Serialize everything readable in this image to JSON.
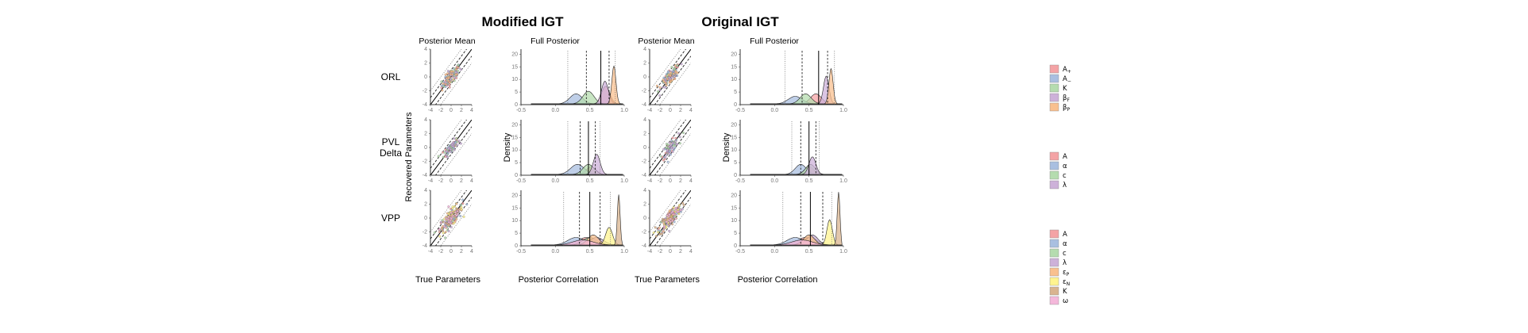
{
  "figure": {
    "panel_titles": [
      "Modified IGT",
      "Original IGT"
    ],
    "column_titles": {
      "mean": "Posterior Mean",
      "full": "Full Posterior"
    },
    "rows": [
      {
        "label": "ORL"
      },
      {
        "label": "PVL\nDelta"
      },
      {
        "label": "VPP"
      }
    ],
    "ylabel_scatter": "Recovered Parameters",
    "ylabel_density": "Density",
    "xlabel_scatter": "True Parameters",
    "xlabel_density": "Posterior Correlation",
    "legends": [
      {
        "row": "ORL",
        "items": [
          {
            "label": "A+",
            "color": "#F4A3A5"
          },
          {
            "label": "A−",
            "color": "#A9BFE0"
          },
          {
            "label": "K",
            "color": "#B5DCAF"
          },
          {
            "label": "βF",
            "color": "#CDB1D9"
          },
          {
            "label": "βP",
            "color": "#F9C08F"
          }
        ]
      },
      {
        "row": "PVL Delta",
        "items": [
          {
            "label": "A",
            "color": "#F4A3A5"
          },
          {
            "label": "α",
            "color": "#A9BFE0"
          },
          {
            "label": "c",
            "color": "#B5DCAF"
          },
          {
            "label": "λ",
            "color": "#CDB1D9"
          }
        ]
      },
      {
        "row": "VPP",
        "items": [
          {
            "label": "A",
            "color": "#F4A3A5"
          },
          {
            "label": "α",
            "color": "#A9BFE0"
          },
          {
            "label": "c",
            "color": "#B5DCAF"
          },
          {
            "label": "λ",
            "color": "#CDB1D9"
          },
          {
            "label": "εP",
            "color": "#F9C08F"
          },
          {
            "label": "εN",
            "color": "#FFF48F"
          },
          {
            "label": "K",
            "color": "#D9B48F"
          },
          {
            "label": "ω",
            "color": "#F4B8DA"
          }
        ]
      }
    ]
  },
  "chart_data": {
    "type": "composite",
    "scatter_axes": {
      "xlim": [
        -4,
        4
      ],
      "ylim": [
        -4,
        4
      ],
      "ticks": [
        -4,
        -2,
        0,
        2,
        4
      ],
      "identity_line": true,
      "dashed_bands": [
        1,
        -1
      ],
      "dotted_bands": [
        2,
        -2
      ]
    },
    "density_axes": {
      "xlim": [
        -0.5,
        1.0
      ],
      "ylim": [
        0,
        22
      ],
      "xticks": [
        -0.5,
        0.0,
        0.5,
        1.0
      ],
      "yticks": [
        0,
        5,
        10,
        15,
        20
      ]
    },
    "panels": [
      {
        "panel": "Modified IGT",
        "row": "ORL",
        "scatter": {
          "center": [
            0,
            0
          ],
          "spread": 0.9,
          "params": [
            "A+",
            "A−",
            "K",
            "βF",
            "βP"
          ]
        },
        "densities": [
          {
            "param": "A+",
            "mean": 0.73,
            "sd": 0.06,
            "peak": 7
          },
          {
            "param": "A−",
            "mean": 0.3,
            "sd": 0.09,
            "peak": 4
          },
          {
            "param": "K",
            "mean": 0.48,
            "sd": 0.08,
            "peak": 5
          },
          {
            "param": "βF",
            "mean": 0.72,
            "sd": 0.05,
            "peak": 9
          },
          {
            "param": "βP",
            "mean": 0.85,
            "sd": 0.03,
            "peak": 15
          }
        ],
        "vlines": {
          "solid": 0.66,
          "dashed": [
            0.45,
            0.78
          ],
          "dotted": [
            0.18,
            0.87
          ]
        }
      },
      {
        "panel": "Modified IGT",
        "row": "PVL Delta",
        "scatter": {
          "center": [
            0,
            0
          ],
          "spread": 0.7,
          "params": [
            "A",
            "α",
            "c",
            "λ"
          ]
        },
        "densities": [
          {
            "param": "A",
            "mean": 0.52,
            "sd": 0.07,
            "peak": 3
          },
          {
            "param": "α",
            "mean": 0.32,
            "sd": 0.1,
            "peak": 4
          },
          {
            "param": "c",
            "mean": 0.48,
            "sd": 0.08,
            "peak": 4
          },
          {
            "param": "λ",
            "mean": 0.6,
            "sd": 0.05,
            "peak": 8
          }
        ],
        "vlines": {
          "solid": 0.48,
          "dashed": [
            0.36,
            0.58
          ],
          "dotted": [
            0.18,
            0.65
          ]
        }
      },
      {
        "panel": "Modified IGT",
        "row": "VPP",
        "scatter": {
          "center": [
            0,
            0
          ],
          "spread": 1.1,
          "params": [
            "A",
            "α",
            "c",
            "λ",
            "εP",
            "εN",
            "K",
            "ω"
          ]
        },
        "densities": [
          {
            "param": "A",
            "mean": 0.45,
            "sd": 0.12,
            "peak": 3
          },
          {
            "param": "α",
            "mean": 0.3,
            "sd": 0.12,
            "peak": 3
          },
          {
            "param": "c",
            "mean": 0.5,
            "sd": 0.1,
            "peak": 3
          },
          {
            "param": "λ",
            "mean": 0.6,
            "sd": 0.1,
            "peak": 3
          },
          {
            "param": "εP",
            "mean": 0.55,
            "sd": 0.08,
            "peak": 4
          },
          {
            "param": "εN",
            "mean": 0.78,
            "sd": 0.05,
            "peak": 7
          },
          {
            "param": "K",
            "mean": 0.92,
            "sd": 0.02,
            "peak": 20
          },
          {
            "param": "ω",
            "mean": 0.4,
            "sd": 0.15,
            "peak": 2
          }
        ],
        "vlines": {
          "solid": 0.5,
          "dashed": [
            0.35,
            0.65
          ],
          "dotted": [
            0.12,
            0.8
          ]
        }
      },
      {
        "panel": "Original IGT",
        "row": "ORL",
        "scatter": {
          "center": [
            0,
            0
          ],
          "spread": 0.9,
          "params": [
            "A+",
            "A−",
            "K",
            "βF",
            "βP"
          ]
        },
        "densities": [
          {
            "param": "A+",
            "mean": 0.6,
            "sd": 0.08,
            "peak": 4
          },
          {
            "param": "A−",
            "mean": 0.3,
            "sd": 0.1,
            "peak": 3
          },
          {
            "param": "K",
            "mean": 0.45,
            "sd": 0.08,
            "peak": 4
          },
          {
            "param": "βF",
            "mean": 0.75,
            "sd": 0.04,
            "peak": 11
          },
          {
            "param": "βP",
            "mean": 0.82,
            "sd": 0.03,
            "peak": 14
          }
        ],
        "vlines": {
          "solid": 0.64,
          "dashed": [
            0.4,
            0.77
          ],
          "dotted": [
            0.15,
            0.87
          ]
        }
      },
      {
        "panel": "Original IGT",
        "row": "PVL Delta",
        "scatter": {
          "center": [
            0,
            0
          ],
          "spread": 0.8,
          "params": [
            "A",
            "α",
            "c",
            "λ"
          ]
        },
        "densities": [
          {
            "param": "A",
            "mean": 0.5,
            "sd": 0.07,
            "peak": 3
          },
          {
            "param": "α",
            "mean": 0.38,
            "sd": 0.08,
            "peak": 4
          },
          {
            "param": "c",
            "mean": 0.52,
            "sd": 0.07,
            "peak": 4
          },
          {
            "param": "λ",
            "mean": 0.55,
            "sd": 0.05,
            "peak": 7
          }
        ],
        "vlines": {
          "solid": 0.5,
          "dashed": [
            0.38,
            0.6
          ],
          "dotted": [
            0.25,
            0.65
          ]
        }
      },
      {
        "panel": "Original IGT",
        "row": "VPP",
        "scatter": {
          "center": [
            0,
            0
          ],
          "spread": 1.1,
          "params": [
            "A",
            "α",
            "c",
            "λ",
            "εP",
            "εN",
            "K",
            "ω"
          ]
        },
        "densities": [
          {
            "param": "A",
            "mean": 0.45,
            "sd": 0.12,
            "peak": 3
          },
          {
            "param": "α",
            "mean": 0.3,
            "sd": 0.12,
            "peak": 3
          },
          {
            "param": "c",
            "mean": 0.52,
            "sd": 0.1,
            "peak": 3
          },
          {
            "param": "λ",
            "mean": 0.55,
            "sd": 0.08,
            "peak": 4
          },
          {
            "param": "εP",
            "mean": 0.5,
            "sd": 0.08,
            "peak": 4
          },
          {
            "param": "εN",
            "mean": 0.8,
            "sd": 0.04,
            "peak": 10
          },
          {
            "param": "K",
            "mean": 0.93,
            "sd": 0.02,
            "peak": 21
          },
          {
            "param": "ω",
            "mean": 0.4,
            "sd": 0.15,
            "peak": 2
          }
        ],
        "vlines": {
          "solid": 0.52,
          "dashed": [
            0.38,
            0.7
          ],
          "dotted": [
            0.12,
            0.83
          ]
        }
      }
    ]
  }
}
